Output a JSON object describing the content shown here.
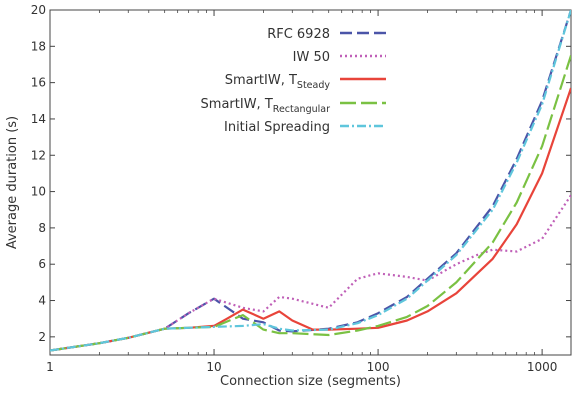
{
  "chart_data": {
    "type": "line",
    "title": "",
    "xlabel": "Connection size (segments)",
    "ylabel": "Average duration (s)",
    "xscale": "log",
    "xlim": [
      1,
      1500
    ],
    "ylim": [
      1,
      20
    ],
    "xticks": [
      {
        "value": 1,
        "label": "1"
      },
      {
        "value": 10,
        "label": "10"
      },
      {
        "value": 100,
        "label": "100"
      },
      {
        "value": 1000,
        "label": "1000"
      }
    ],
    "yticks": [
      {
        "value": 2,
        "label": "2"
      },
      {
        "value": 4,
        "label": "4"
      },
      {
        "value": 6,
        "label": "6"
      },
      {
        "value": 8,
        "label": "8"
      },
      {
        "value": 10,
        "label": "10"
      },
      {
        "value": 12,
        "label": "12"
      },
      {
        "value": 14,
        "label": "14"
      },
      {
        "value": 16,
        "label": "16"
      },
      {
        "value": 18,
        "label": "18"
      },
      {
        "value": 20,
        "label": "20"
      }
    ],
    "grid": false,
    "legend": "top-right",
    "series": [
      {
        "name": "RFC 6928",
        "label_main": "RFC 6928",
        "label_sub": "",
        "color": "#4b55a8",
        "dash": "12,5",
        "x": [
          1,
          2,
          3,
          5,
          7,
          10,
          15,
          20,
          25,
          30,
          50,
          75,
          100,
          150,
          200,
          300,
          500,
          700,
          1000,
          1500
        ],
        "y": [
          1.25,
          1.65,
          1.95,
          2.45,
          3.3,
          4.1,
          3.0,
          2.8,
          2.35,
          2.3,
          2.45,
          2.8,
          3.3,
          4.2,
          5.2,
          6.6,
          9.2,
          11.8,
          15.0,
          20.0
        ]
      },
      {
        "name": "IW 50",
        "label_main": "IW 50",
        "label_sub": "",
        "color": "#c060b8",
        "dash": "2,3",
        "x": [
          1,
          2,
          3,
          5,
          7,
          10,
          15,
          20,
          25,
          30,
          50,
          75,
          100,
          150,
          200,
          300,
          400,
          500,
          700,
          1000,
          1500
        ],
        "y": [
          1.25,
          1.65,
          1.95,
          2.45,
          3.3,
          4.1,
          3.6,
          3.4,
          4.2,
          4.1,
          3.6,
          5.2,
          5.5,
          5.3,
          5.1,
          6.0,
          6.5,
          6.8,
          6.7,
          7.4,
          9.8
        ]
      },
      {
        "name": "SmartIW, TSteady",
        "label_main": "SmartIW, T",
        "label_sub": "Steady",
        "color": "#e8443a",
        "dash": "",
        "x": [
          1,
          2,
          3,
          5,
          7,
          10,
          12,
          15,
          20,
          25,
          30,
          40,
          50,
          75,
          100,
          150,
          200,
          300,
          500,
          700,
          1000,
          1500
        ],
        "y": [
          1.25,
          1.65,
          1.95,
          2.45,
          2.5,
          2.6,
          3.0,
          3.5,
          3.0,
          3.4,
          2.9,
          2.4,
          2.4,
          2.45,
          2.5,
          2.9,
          3.4,
          4.4,
          6.3,
          8.2,
          11.0,
          15.7
        ]
      },
      {
        "name": "SmartIW, TRectangular",
        "label_main": "SmartIW, T",
        "label_sub": "Rectangular",
        "color": "#7ac143",
        "dash": "16,5",
        "x": [
          1,
          2,
          3,
          5,
          7,
          10,
          15,
          20,
          25,
          30,
          50,
          75,
          100,
          150,
          200,
          300,
          500,
          700,
          1000,
          1500
        ],
        "y": [
          1.25,
          1.65,
          1.95,
          2.45,
          2.5,
          2.55,
          3.2,
          2.4,
          2.2,
          2.2,
          2.1,
          2.35,
          2.6,
          3.1,
          3.7,
          5.0,
          7.2,
          9.4,
          12.5,
          17.5
        ]
      },
      {
        "name": "Initial Spreading",
        "label_main": "Initial Spreading",
        "label_sub": "",
        "color": "#5fc6dc",
        "dash": "9,3,2,3",
        "x": [
          1,
          2,
          3,
          5,
          7,
          10,
          15,
          20,
          25,
          30,
          50,
          75,
          100,
          150,
          200,
          300,
          500,
          700,
          1000,
          1500
        ],
        "y": [
          1.25,
          1.65,
          1.95,
          2.45,
          2.5,
          2.55,
          2.6,
          2.7,
          2.45,
          2.35,
          2.4,
          2.75,
          3.2,
          4.1,
          5.1,
          6.5,
          9.0,
          11.6,
          14.8,
          20.0
        ]
      }
    ]
  }
}
